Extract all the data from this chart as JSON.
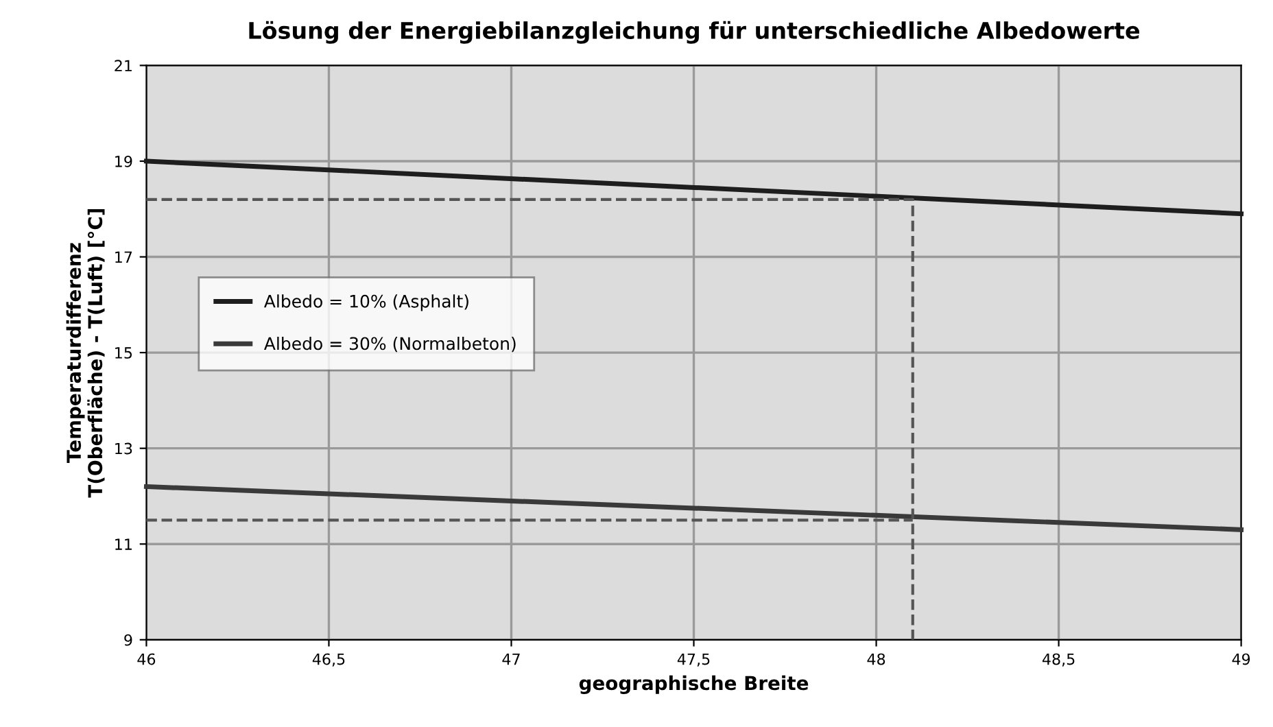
{
  "chart_data": {
    "type": "line",
    "title": "Lösung der Energiebilanzgleichung für unterschiedliche Albedowerte",
    "xlabel": "geographische Breite",
    "ylabel": "Temperaturdifferenz\nT(Oberfläche) - T(Luft) [°C]",
    "series": [
      {
        "name": "Albedo = 10% (Asphalt)",
        "color": "#1e1e1e",
        "x": [
          46,
          49
        ],
        "values": [
          19.0,
          17.9
        ]
      },
      {
        "name": "Albedo = 30% (Normalbeton)",
        "color": "#3a3a3a",
        "x": [
          46,
          49
        ],
        "values": [
          12.2,
          11.3
        ]
      },
      {
        "color": "#555555",
        "x": [
          46,
          48.1,
          48.1
        ],
        "values": [
          18.2,
          18.2,
          9
        ],
        "line_style": "dashed"
      },
      {
        "color": "#555555",
        "x": [
          46,
          48.1
        ],
        "values": [
          11.5,
          11.5
        ],
        "line_style": "dashed"
      }
    ],
    "xlim": [
      46,
      49
    ],
    "ylim": [
      9,
      21
    ],
    "xticks": [
      46,
      {
        "value": 46.5,
        "label": "46,5"
      },
      47,
      {
        "value": 47.5,
        "label": "47,5"
      },
      48,
      {
        "value": 48.5,
        "label": "48,5"
      },
      49
    ],
    "yticks": [
      9,
      11,
      13,
      15,
      17,
      19,
      21
    ],
    "grid": true,
    "legend": "left"
  }
}
